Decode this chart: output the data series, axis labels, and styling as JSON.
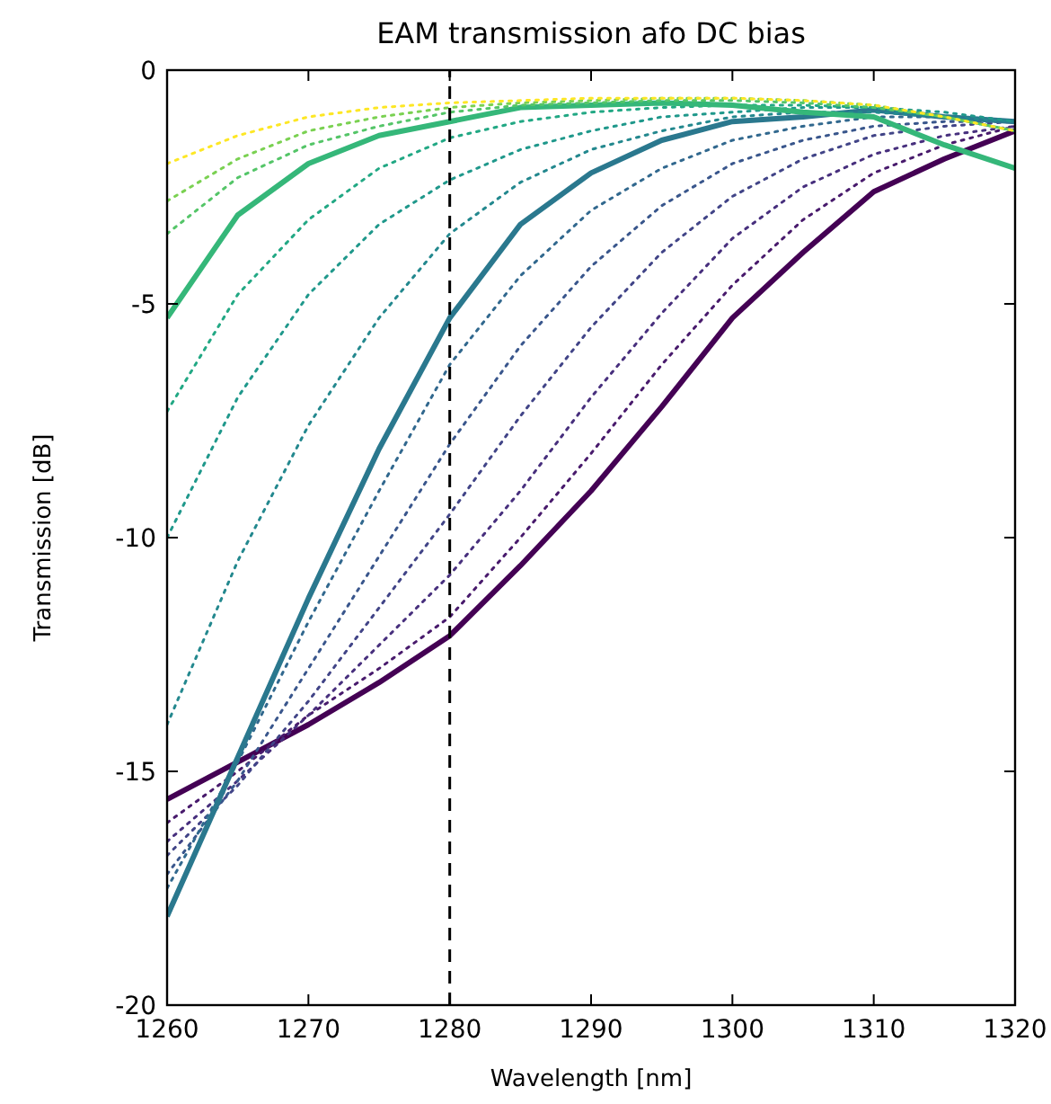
{
  "chart_data": {
    "type": "line",
    "title": "EAM transmission afo DC bias",
    "xlabel": "Wavelength [nm]",
    "ylabel": "Transmission [dB]",
    "x": [
      1260,
      1265,
      1270,
      1275,
      1280,
      1285,
      1290,
      1295,
      1300,
      1305,
      1310,
      1315,
      1320
    ],
    "xlim": [
      1260,
      1320
    ],
    "xticks": [
      1260,
      1270,
      1280,
      1290,
      1300,
      1310,
      1320
    ],
    "ylim": [
      -20,
      0
    ],
    "yticks": [
      -20,
      -15,
      -10,
      -5,
      0
    ],
    "grid": false,
    "marker": "none",
    "ref_lines": [
      {
        "axis": "x",
        "value": 1280,
        "color": "#000000",
        "line_style": "dashed"
      }
    ],
    "series": [
      {
        "color": "#440154",
        "line_style": "solid",
        "values": [
          -15.6,
          -14.8,
          -14.0,
          -13.1,
          -12.1,
          -10.6,
          -9.0,
          -7.2,
          -5.3,
          -3.9,
          -2.6,
          -1.9,
          -1.3
        ]
      },
      {
        "color": "#481a6c",
        "line_style": "dotted",
        "values": [
          -16.1,
          -15.0,
          -13.8,
          -12.8,
          -11.7,
          -10.0,
          -8.2,
          -6.3,
          -4.6,
          -3.2,
          -2.2,
          -1.6,
          -1.2
        ]
      },
      {
        "color": "#472f7d",
        "line_style": "dotted",
        "values": [
          -16.5,
          -15.2,
          -13.8,
          -12.3,
          -10.8,
          -9.0,
          -7.0,
          -5.2,
          -3.6,
          -2.5,
          -1.8,
          -1.4,
          -1.2
        ]
      },
      {
        "color": "#414487",
        "line_style": "dotted",
        "values": [
          -16.8,
          -15.3,
          -13.5,
          -11.5,
          -9.5,
          -7.4,
          -5.5,
          -3.9,
          -2.7,
          -1.9,
          -1.4,
          -1.2,
          -1.1
        ]
      },
      {
        "color": "#39568c",
        "line_style": "dotted",
        "values": [
          -17.2,
          -15.2,
          -12.8,
          -10.4,
          -8.0,
          -5.9,
          -4.2,
          -2.9,
          -2.0,
          -1.5,
          -1.2,
          -1.1,
          -1.1
        ]
      },
      {
        "color": "#31688e",
        "line_style": "dotted",
        "values": [
          -17.5,
          -14.8,
          -11.8,
          -9.0,
          -6.3,
          -4.4,
          -3.0,
          -2.1,
          -1.5,
          -1.2,
          -1.0,
          -1.0,
          -1.1
        ]
      },
      {
        "color": "#2a788e",
        "line_style": "solid",
        "values": [
          -18.1,
          -14.7,
          -11.3,
          -8.1,
          -5.3,
          -3.3,
          -2.2,
          -1.5,
          -1.1,
          -1.0,
          -0.85,
          -1.0,
          -1.1
        ]
      },
      {
        "color": "#23888e",
        "line_style": "dotted",
        "values": [
          -14.0,
          -10.5,
          -7.6,
          -5.3,
          -3.5,
          -2.4,
          -1.7,
          -1.3,
          -1.0,
          -0.9,
          -0.9,
          -1.0,
          -1.1
        ]
      },
      {
        "color": "#1f988b",
        "line_style": "dotted",
        "values": [
          -10.0,
          -7.0,
          -4.8,
          -3.3,
          -2.35,
          -1.7,
          -1.3,
          -1.0,
          -0.9,
          -0.8,
          -0.8,
          -0.9,
          -1.1
        ]
      },
      {
        "color": "#22a884",
        "line_style": "dotted",
        "values": [
          -7.3,
          -4.8,
          -3.2,
          -2.1,
          -1.45,
          -1.1,
          -0.9,
          -0.8,
          -0.75,
          -0.75,
          -0.8,
          -1.0,
          -1.3
        ]
      },
      {
        "color": "#35b779",
        "line_style": "solid",
        "values": [
          -5.3,
          -3.1,
          -2.0,
          -1.4,
          -1.1,
          -0.8,
          -0.75,
          -0.7,
          -0.75,
          -0.9,
          -1.0,
          -1.6,
          -2.1
        ]
      },
      {
        "color": "#54c568",
        "line_style": "dotted",
        "values": [
          -3.5,
          -2.3,
          -1.6,
          -1.2,
          -0.9,
          -0.75,
          -0.7,
          -0.65,
          -0.65,
          -0.7,
          -0.8,
          -1.0,
          -1.3
        ]
      },
      {
        "color": "#7ad151",
        "line_style": "dotted",
        "values": [
          -2.8,
          -1.9,
          -1.3,
          -1.0,
          -0.8,
          -0.7,
          -0.65,
          -0.6,
          -0.6,
          -0.65,
          -0.75,
          -1.0,
          -1.3
        ]
      },
      {
        "color": "#fde725",
        "line_style": "dotted",
        "values": [
          -2.0,
          -1.4,
          -1.0,
          -0.8,
          -0.7,
          -0.65,
          -0.6,
          -0.6,
          -0.6,
          -0.65,
          -0.75,
          -1.0,
          -1.3
        ]
      }
    ]
  }
}
